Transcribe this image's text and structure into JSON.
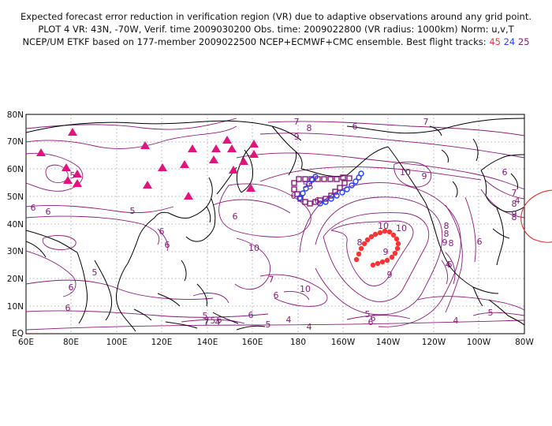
{
  "header": {
    "line1": "Expected forecast error reduction in verification region (VR) due to adaptive observations around any grid point.",
    "line2": "PLOT 4 VR: 43N, -70W, Verif. time 2009030200 Obs. time: 2009022800 (VR radius: 1000km) Norm: u,v,T",
    "line3_prefix": "NCEP/UM ETKF based on 177-member 2009022500 NCEP+ECMWF+CMC ensemble. Best flight tracks:",
    "tracks": [
      {
        "id": "45",
        "color": "#ff3333"
      },
      {
        "id": "24",
        "color": "#2244ee"
      },
      {
        "id": "25",
        "color": "#8a1a7a"
      }
    ]
  },
  "map": {
    "lat_labels": [
      "80N",
      "70N",
      "60N",
      "50N",
      "40N",
      "30N",
      "20N",
      "10N",
      "EQ"
    ],
    "lon_labels": [
      "60E",
      "80E",
      "100E",
      "120E",
      "140E",
      "160E",
      "180",
      "160W",
      "140W",
      "120W",
      "100W",
      "80W"
    ],
    "contour_labels": [
      "7",
      "6",
      "8",
      "9",
      "10",
      "9",
      "6",
      "7",
      "5",
      "6",
      "5",
      "6",
      "6",
      "6",
      "5",
      "6",
      "8",
      "9",
      "10",
      "10",
      "7",
      "6",
      "5",
      "4",
      "8",
      "8",
      "9",
      "10",
      "10",
      "9",
      "8",
      "6",
      "4",
      "9",
      "4",
      "8",
      "8",
      "7",
      "6",
      "5",
      "4",
      "6",
      "7",
      "6",
      "6",
      "5",
      "5",
      "6",
      "6",
      "4",
      "5",
      "6",
      "6",
      "7",
      "5",
      "4",
      "6",
      "5"
    ],
    "colors": {
      "contour": "#8a1a7a",
      "coast": "#000000",
      "grid": "#888888",
      "triangle": "#e0147e",
      "track_red": "#ff3333",
      "track_blue": "#2244ee",
      "track_purple": "#8a1a7a",
      "verification_circle": "#e03030"
    }
  }
}
